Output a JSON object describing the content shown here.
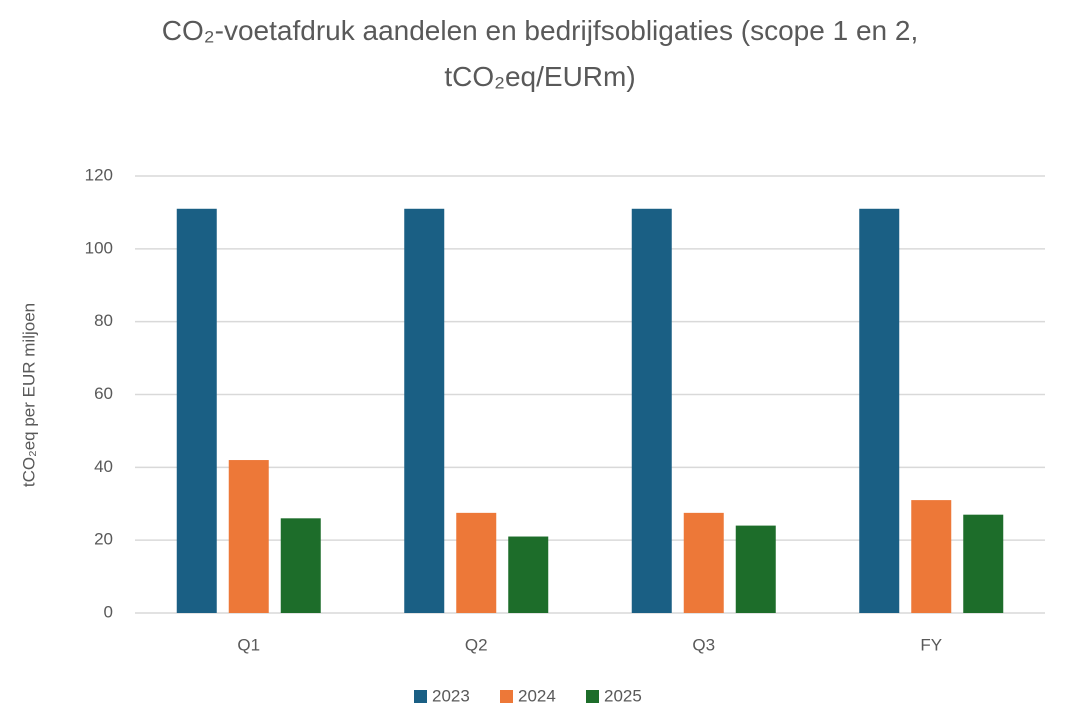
{
  "chart_data": {
    "type": "bar",
    "title": "CO₂-voetafdruk aandelen en bedrijfsobligaties (scope 1 en 2, tCO₂eq/EURm)",
    "y_label": "tCO₂eq per EUR miljoen",
    "categories": [
      "Q1",
      "Q2",
      "Q3",
      "FY"
    ],
    "series": [
      {
        "name": "2023",
        "color": "#1a5f84",
        "values": [
          111,
          111,
          111,
          111
        ]
      },
      {
        "name": "2024",
        "color": "#ed7838",
        "values": [
          42,
          27.5,
          27.5,
          31
        ]
      },
      {
        "name": "2025",
        "color": "#1d6d2a",
        "values": [
          26,
          21,
          24,
          27
        ]
      }
    ],
    "ylim": [
      0,
      120
    ],
    "yticks": [
      0,
      20,
      40,
      60,
      80,
      100,
      120
    ],
    "grid": true,
    "legend": "bottom"
  }
}
